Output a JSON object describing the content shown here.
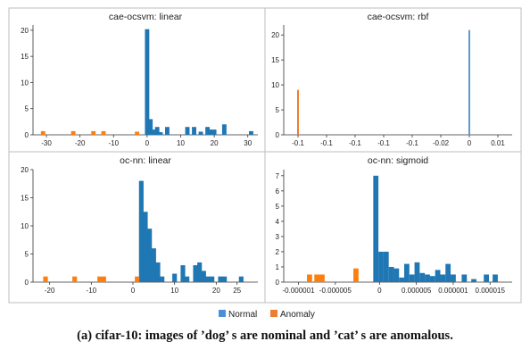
{
  "legend": [
    {
      "name": "Normal",
      "color": "#4a90d9"
    },
    {
      "name": "Anomaly",
      "color": "#ed7d31"
    }
  ],
  "caption": "(a) cifar-10: images of ’dog’ s are nominal and ’cat’ s are anomalous.",
  "chart_data": [
    {
      "type": "bar",
      "title": "cae-ocsvm: linear",
      "xlabel": "",
      "ylabel": "",
      "xlim": [
        -34,
        33
      ],
      "ylim": [
        0,
        21
      ],
      "yticks": [
        0,
        5,
        10,
        15,
        20
      ],
      "xticks": [
        {
          "v": -30,
          "label": "-30"
        },
        {
          "v": -20,
          "label": "-20"
        },
        {
          "v": -10,
          "label": "-10"
        },
        {
          "v": 0,
          "label": "0"
        },
        {
          "v": 10,
          "label": "10"
        },
        {
          "v": 20,
          "label": "20"
        },
        {
          "v": 30,
          "label": "30"
        }
      ],
      "grid": false,
      "bar_width": 1.3,
      "series": [
        {
          "name": "Normal",
          "color": "#1f77b4",
          "x": [
            0,
            1,
            2,
            3,
            4,
            6,
            12,
            14,
            16,
            18,
            19,
            20,
            23,
            31
          ],
          "values": [
            20.2,
            3,
            1,
            1.5,
            0.5,
            1.5,
            1.5,
            1.5,
            0.6,
            1.5,
            1,
            1,
            2,
            0.7
          ]
        },
        {
          "name": "Anomaly",
          "color": "#ff7f0e",
          "x": [
            -31,
            -22,
            -16,
            -13,
            -3
          ],
          "values": [
            0.7,
            0.7,
            0.7,
            0.7,
            0.6
          ]
        }
      ]
    },
    {
      "type": "bar",
      "title": "cae-ocsvm: rbf",
      "xlabel": "",
      "ylabel": "",
      "xlim": [
        0,
        8
      ],
      "ylim": [
        0,
        22
      ],
      "yticks": [
        0,
        5,
        10,
        15,
        20
      ],
      "xticks": [
        {
          "v": 0.5,
          "label": "-0.1"
        },
        {
          "v": 1.5,
          "label": "-0.1"
        },
        {
          "v": 2.5,
          "label": "-0.1"
        },
        {
          "v": 3.5,
          "label": "-0.1"
        },
        {
          "v": 4.5,
          "label": "-0.1"
        },
        {
          "v": 5.5,
          "label": "-0.02"
        },
        {
          "v": 6.5,
          "label": "0"
        },
        {
          "v": 7.5,
          "label": "0.01"
        }
      ],
      "grid": false,
      "bar_width": 0.06,
      "series": [
        {
          "name": "Normal",
          "color": "#5b9bd5",
          "x": [
            6.5
          ],
          "values": [
            21
          ]
        },
        {
          "name": "Anomaly",
          "color": "#ed7d31",
          "x": [
            0.5
          ],
          "values": [
            9
          ]
        }
      ]
    },
    {
      "type": "bar",
      "title": "oc-nn: linear",
      "xlabel": "",
      "ylabel": "",
      "xlim": [
        -24,
        30
      ],
      "ylim": [
        0,
        20
      ],
      "yticks": [
        0,
        5,
        10,
        15,
        20
      ],
      "xticks": [
        {
          "v": -20,
          "label": "-20"
        },
        {
          "v": -10,
          "label": "-10"
        },
        {
          "v": 0,
          "label": "0"
        },
        {
          "v": 10,
          "label": "10"
        },
        {
          "v": 20,
          "label": "20"
        },
        {
          "v": 25,
          "label": "25"
        }
      ],
      "grid": false,
      "bar_width": 1.1,
      "series": [
        {
          "name": "Normal",
          "color": "#1f77b4",
          "x": [
            2,
            3,
            4,
            5,
            6,
            7,
            10,
            12,
            13,
            15,
            16,
            17,
            18,
            19,
            21,
            22,
            26
          ],
          "values": [
            18,
            12.5,
            9.5,
            6,
            3.5,
            1,
            1.5,
            3,
            1,
            3,
            3.5,
            2,
            1,
            1,
            1,
            1,
            1
          ]
        },
        {
          "name": "Anomaly",
          "color": "#ff7f0e",
          "x": [
            -21,
            -14,
            -8,
            -7,
            1
          ],
          "values": [
            1,
            1,
            1,
            1,
            1
          ]
        }
      ]
    },
    {
      "type": "bar",
      "title": "oc-nn: sigmoid",
      "xlabel": "",
      "ylabel": "",
      "xlim": [
        -1.3,
        1.8
      ],
      "ylim": [
        0,
        7.4
      ],
      "yticks": [
        0,
        1,
        2,
        3,
        4,
        5,
        6,
        7
      ],
      "xticks": [
        {
          "v": -1.1,
          "label": "-0.000001"
        },
        {
          "v": -0.6,
          "label": "-0.000005"
        },
        {
          "v": 0,
          "label": "0"
        },
        {
          "v": 0.5,
          "label": "0.000005"
        },
        {
          "v": 1.0,
          "label": "0.000001"
        },
        {
          "v": 1.5,
          "label": "0.000015"
        }
      ],
      "grid": false,
      "bar_width": 0.07,
      "series": [
        {
          "name": "Normal",
          "color": "#1f77b4",
          "x": [
            -0.05,
            0.02,
            0.09,
            0.16,
            0.23,
            0.3,
            0.37,
            0.44,
            0.51,
            0.58,
            0.65,
            0.72,
            0.79,
            0.86,
            0.93,
            1.0,
            1.15,
            1.28,
            1.45,
            1.57
          ],
          "values": [
            7,
            2,
            2,
            1,
            0.9,
            0.3,
            1.2,
            0.5,
            1.3,
            0.6,
            0.5,
            0.4,
            0.8,
            0.5,
            1.2,
            0.5,
            0.5,
            0.2,
            0.5,
            0.5
          ]
        },
        {
          "name": "Anomaly",
          "color": "#ff7f0e",
          "x": [
            -0.95,
            -0.85,
            -0.78,
            -0.32
          ],
          "values": [
            0.5,
            0.5,
            0.5,
            0.9
          ]
        }
      ]
    }
  ]
}
